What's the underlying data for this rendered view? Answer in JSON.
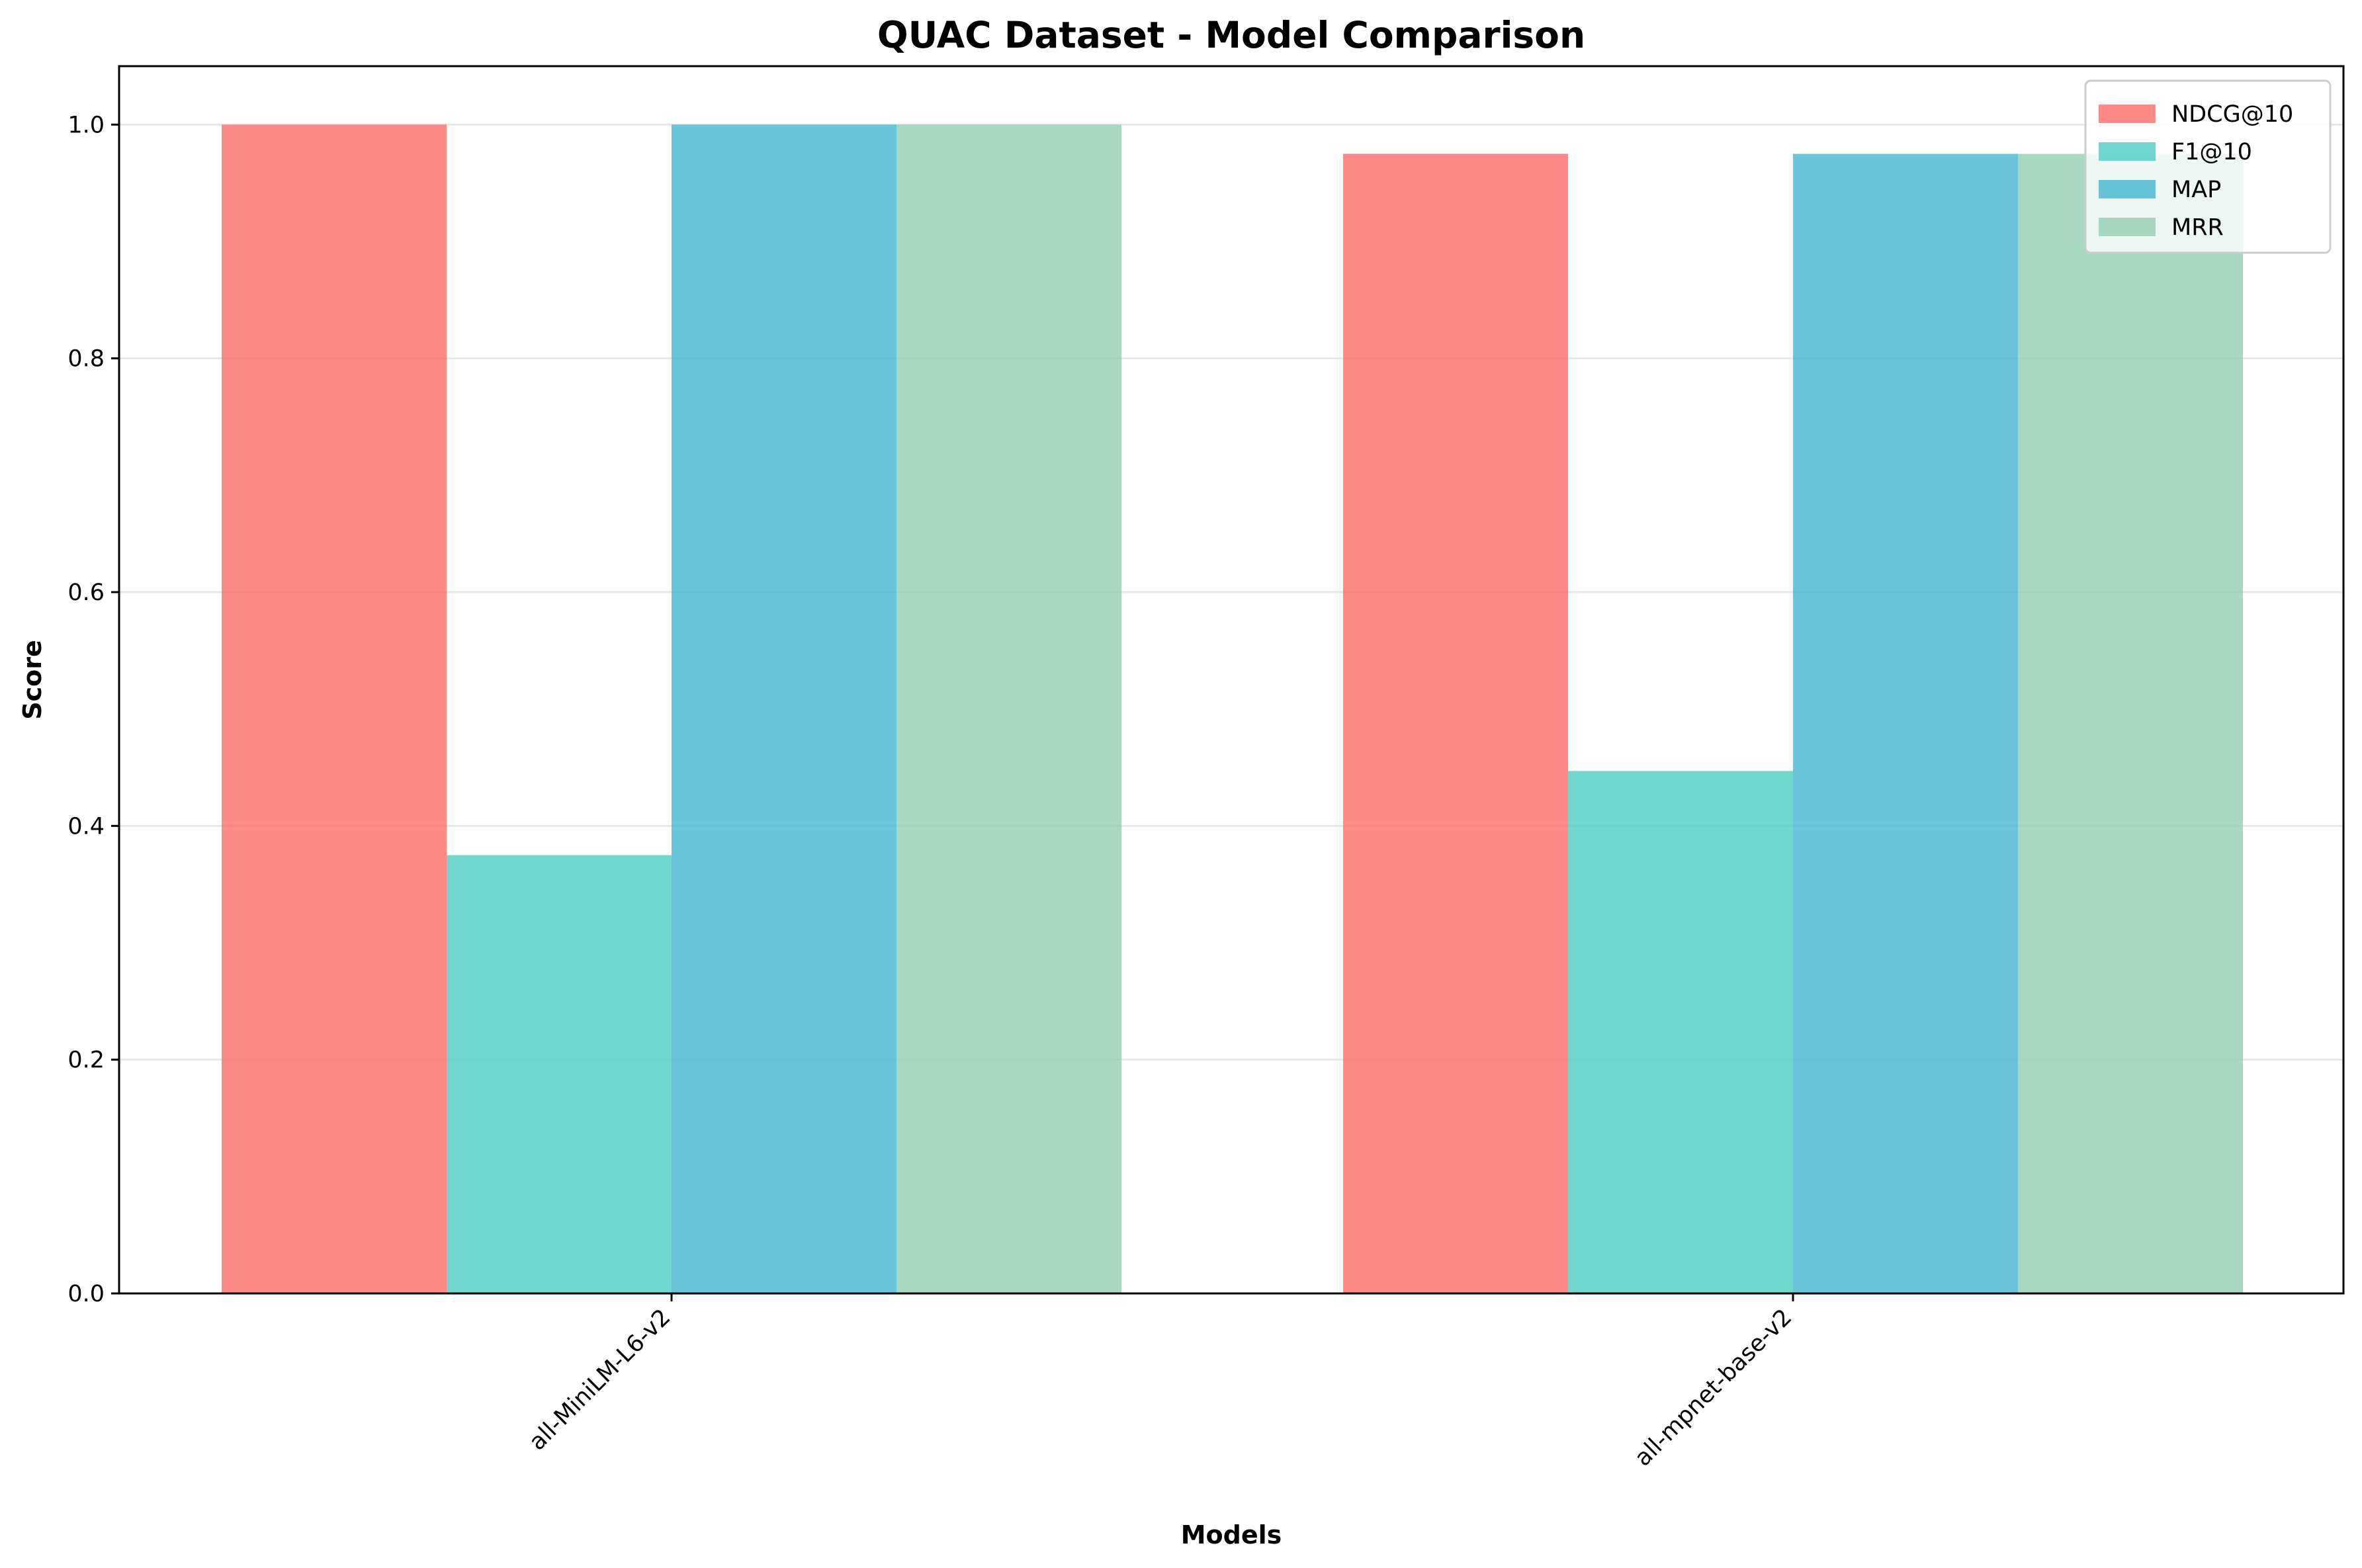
{
  "chart_data": {
    "type": "bar",
    "title": "QUAC Dataset - Model Comparison",
    "xlabel": "Models",
    "ylabel": "Score",
    "categories": [
      "all-MiniLM-L6-v2",
      "all-mpnet-base-v2"
    ],
    "series": [
      {
        "name": "NDCG@10",
        "color": "#ff6b6b",
        "values": [
          1.0,
          0.975
        ]
      },
      {
        "name": "F1@10",
        "color": "#4ecdc4",
        "values": [
          0.375,
          0.447
        ]
      },
      {
        "name": "MAP",
        "color": "#45b7d1",
        "values": [
          1.0,
          0.975
        ]
      },
      {
        "name": "MRR",
        "color": "#96ceb4",
        "values": [
          1.0,
          0.975
        ]
      }
    ],
    "ylim": [
      0,
      1.05
    ],
    "yticks": [
      0.0,
      0.2,
      0.4,
      0.6,
      0.8,
      1.0
    ],
    "ytick_labels": [
      "0.0",
      "0.2",
      "0.4",
      "0.6",
      "0.8",
      "1.0"
    ],
    "bar_opacity": 0.8,
    "grid": "y",
    "legend_position": "top-right"
  }
}
